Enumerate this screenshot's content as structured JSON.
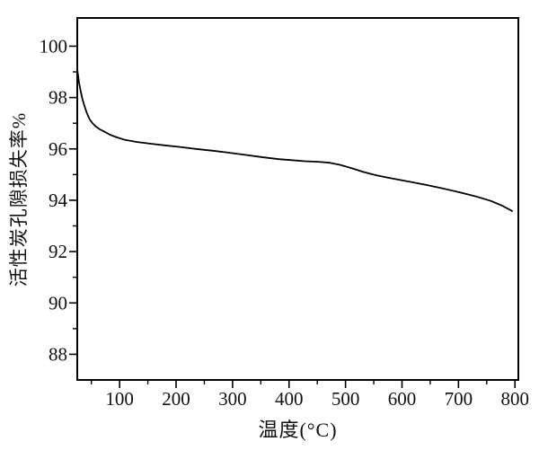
{
  "chart_data": {
    "type": "line",
    "title": "",
    "xlabel": "温度(°C)",
    "ylabel": "活性炭孔隙损失率%",
    "xlim": [
      25,
      806
    ],
    "ylim": [
      87,
      101.1
    ],
    "x_ticks": [
      100,
      200,
      300,
      400,
      500,
      600,
      700,
      800
    ],
    "x_minor_ticks": [
      50,
      150,
      250,
      350,
      450,
      550,
      650,
      750
    ],
    "y_ticks": [
      88,
      90,
      92,
      94,
      96,
      98,
      100
    ],
    "y_minor_ticks": [
      89,
      91,
      93,
      95,
      97,
      99
    ],
    "grid": false,
    "legend_position": "none",
    "frame": "full-box",
    "background_color": "#ffffff",
    "line_color": "#000000",
    "series": [
      {
        "points": [
          [
            25,
            99.1
          ],
          [
            28,
            98.6
          ],
          [
            31,
            98.25
          ],
          [
            34,
            97.95
          ],
          [
            38,
            97.65
          ],
          [
            42,
            97.4
          ],
          [
            47,
            97.15
          ],
          [
            52,
            97.0
          ],
          [
            58,
            96.87
          ],
          [
            65,
            96.76
          ],
          [
            73,
            96.67
          ],
          [
            83,
            96.55
          ],
          [
            95,
            96.45
          ],
          [
            110,
            96.35
          ],
          [
            130,
            96.27
          ],
          [
            155,
            96.2
          ],
          [
            180,
            96.14
          ],
          [
            205,
            96.08
          ],
          [
            235,
            96.0
          ],
          [
            265,
            95.93
          ],
          [
            295,
            95.85
          ],
          [
            325,
            95.76
          ],
          [
            355,
            95.67
          ],
          [
            382,
            95.6
          ],
          [
            405,
            95.56
          ],
          [
            428,
            95.52
          ],
          [
            452,
            95.5
          ],
          [
            472,
            95.46
          ],
          [
            492,
            95.37
          ],
          [
            512,
            95.24
          ],
          [
            532,
            95.1
          ],
          [
            555,
            94.97
          ],
          [
            582,
            94.85
          ],
          [
            612,
            94.73
          ],
          [
            642,
            94.6
          ],
          [
            672,
            94.46
          ],
          [
            702,
            94.31
          ],
          [
            732,
            94.14
          ],
          [
            758,
            93.97
          ],
          [
            778,
            93.78
          ],
          [
            795,
            93.58
          ]
        ]
      }
    ]
  }
}
